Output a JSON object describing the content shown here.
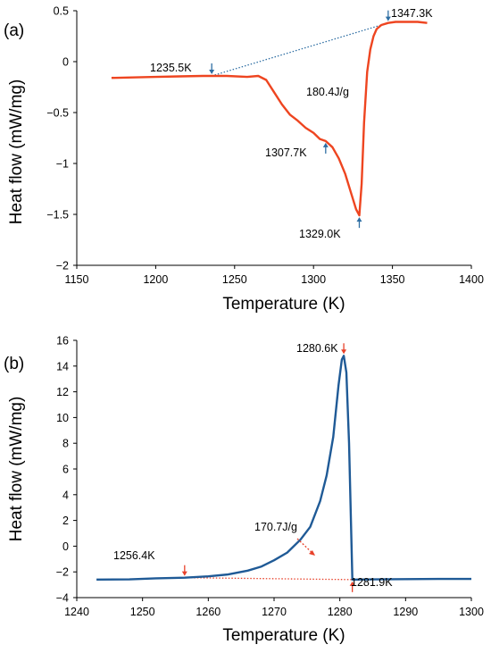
{
  "chart_data": [
    {
      "type": "line",
      "panel_label": "(a)",
      "xlabel": "Temperature (K)",
      "ylabel": "Heat flow (mW/mg)",
      "xlim": [
        1150,
        1400
      ],
      "ylim": [
        -2,
        0.5
      ],
      "xticks": [
        1150,
        1200,
        1250,
        1300,
        1350,
        1400
      ],
      "xtick_labels": [
        "1150",
        "1200",
        "1250",
        "1300",
        "1350",
        "1400"
      ],
      "yticks": [
        0.5,
        0,
        -0.5,
        -1,
        -1.5,
        -2
      ],
      "ytick_labels": [
        "0.5",
        "0",
        "−0.5",
        "−1",
        "−1.5",
        "−2"
      ],
      "grid": false,
      "line_color": "#ee4520",
      "series": [
        {
          "x": [
            1172,
            1185,
            1200,
            1215,
            1230,
            1245,
            1258,
            1265,
            1270,
            1275,
            1280,
            1285,
            1290,
            1295,
            1300,
            1304,
            1307.7,
            1312,
            1316,
            1320,
            1324,
            1327,
            1329,
            1330.5,
            1332,
            1334,
            1336,
            1338,
            1340,
            1343,
            1347.3,
            1352,
            1360,
            1366,
            1372
          ],
          "values": [
            -0.16,
            -0.155,
            -0.15,
            -0.145,
            -0.14,
            -0.14,
            -0.15,
            -0.14,
            -0.18,
            -0.3,
            -0.42,
            -0.52,
            -0.58,
            -0.65,
            -0.7,
            -0.76,
            -0.78,
            -0.84,
            -0.95,
            -1.1,
            -1.3,
            -1.45,
            -1.51,
            -1.2,
            -0.6,
            -0.1,
            0.12,
            0.25,
            0.32,
            0.36,
            0.38,
            0.39,
            0.39,
            0.39,
            0.38
          ]
        }
      ],
      "baseline": {
        "x": [
          1235.5,
          1347.3
        ],
        "values": [
          -0.14,
          0.38
        ],
        "color": "#2e6ea3",
        "style": "dotted"
      },
      "annotations": [
        {
          "text": "1235.5K",
          "x": 1235.5,
          "y": -0.14,
          "arrow": "down",
          "arrow_color": "#2e6ea3"
        },
        {
          "text": "1347.3K",
          "x": 1347.3,
          "y": 0.38,
          "arrow": "down",
          "arrow_color": "#2e6ea3"
        },
        {
          "text": "1307.7K",
          "x": 1307.7,
          "y": -0.78,
          "arrow": "up",
          "arrow_color": "#2e6ea3"
        },
        {
          "text": "1329.0K",
          "x": 1329.0,
          "y": -1.51,
          "arrow": "up",
          "arrow_color": "#2e6ea3"
        },
        {
          "text": "180.4J/g"
        }
      ]
    },
    {
      "type": "line",
      "panel_label": "(b)",
      "xlabel": "Temperature (K)",
      "ylabel": "Heat flow (mW/mg)",
      "xlim": [
        1240,
        1300
      ],
      "ylim": [
        -4,
        16
      ],
      "xticks": [
        1240,
        1250,
        1260,
        1270,
        1280,
        1290,
        1300
      ],
      "xtick_labels": [
        "1240",
        "1250",
        "1260",
        "1270",
        "1280",
        "1290",
        "1300"
      ],
      "yticks": [
        16,
        14,
        12,
        10,
        8,
        6,
        4,
        2,
        0,
        -2,
        -4
      ],
      "ytick_labels": [
        "16",
        "14",
        "12",
        "10",
        "8",
        "6",
        "4",
        "2",
        "0",
        "−2",
        "−4"
      ],
      "grid": false,
      "line_color": "#1f5a96",
      "series": [
        {
          "x": [
            1243,
            1248,
            1252,
            1256.4,
            1260,
            1263,
            1266,
            1268,
            1270,
            1272,
            1274,
            1275.5,
            1277,
            1278,
            1279,
            1279.8,
            1280.3,
            1280.6,
            1281,
            1281.4,
            1281.9,
            1282.5,
            1285,
            1290,
            1295,
            1300
          ],
          "values": [
            -2.6,
            -2.58,
            -2.5,
            -2.45,
            -2.35,
            -2.2,
            -1.9,
            -1.6,
            -1.1,
            -0.5,
            0.5,
            1.5,
            3.5,
            5.5,
            8.5,
            12.5,
            14.5,
            14.8,
            13.5,
            8.0,
            -2.6,
            -2.6,
            -2.58,
            -2.56,
            -2.55,
            -2.55
          ]
        }
      ],
      "baseline": {
        "x": [
          1256.4,
          1281.9
        ],
        "values": [
          -2.45,
          -2.6
        ],
        "color": "#e8412a",
        "style": "dotted"
      },
      "annotations": [
        {
          "text": "1280.6K",
          "x": 1280.6,
          "y": 14.8,
          "arrow": "down",
          "arrow_color": "#e8412a"
        },
        {
          "text": "1256.4K",
          "x": 1256.4,
          "y": -2.45,
          "arrow": "down",
          "arrow_color": "#e8412a"
        },
        {
          "text": "1281.9K",
          "x": 1281.9,
          "y": -2.6,
          "arrow": "up",
          "arrow_color": "#e8412a"
        },
        {
          "text": "170.7J/g"
        }
      ]
    }
  ]
}
